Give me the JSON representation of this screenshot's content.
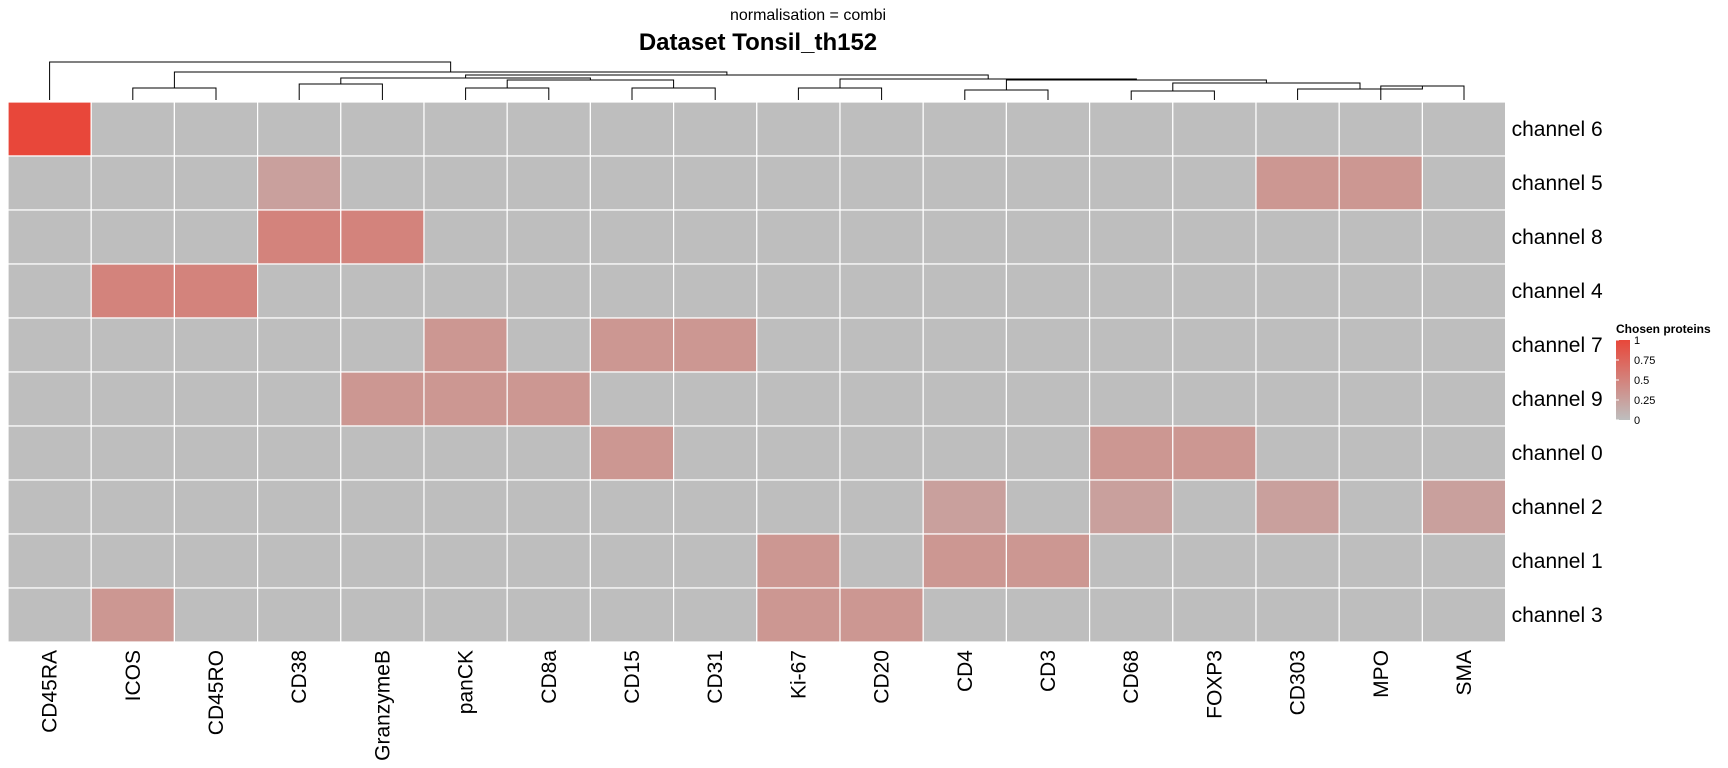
{
  "chart_data": {
    "type": "heatmap",
    "subtitle": "normalisation = combi",
    "title": "Dataset Tonsil_th152",
    "columns": [
      "CD45RA",
      "ICOS",
      "CD45RO",
      "CD38",
      "GranzymeB",
      "panCK",
      "CD8a",
      "CD15",
      "CD31",
      "Ki-67",
      "CD20",
      "CD4",
      "CD3",
      "CD68",
      "FOXP3",
      "CD303",
      "MPO",
      "SMA"
    ],
    "rows": [
      "channel 6",
      "channel 5",
      "channel 8",
      "channel 4",
      "channel 7",
      "channel 9",
      "channel 0",
      "channel 2",
      "channel 1",
      "channel 3"
    ],
    "values": [
      [
        1,
        0,
        0,
        0,
        0,
        0,
        0,
        0,
        0,
        0,
        0,
        0,
        0,
        0,
        0,
        0,
        0,
        0
      ],
      [
        0,
        0,
        0,
        0.25,
        0,
        0,
        0,
        0,
        0,
        0,
        0,
        0,
        0,
        0,
        0,
        0.33,
        0.33,
        0
      ],
      [
        0,
        0,
        0,
        0.5,
        0.5,
        0,
        0,
        0,
        0,
        0,
        0,
        0,
        0,
        0,
        0,
        0,
        0,
        0
      ],
      [
        0,
        0.5,
        0.5,
        0,
        0,
        0,
        0,
        0,
        0,
        0,
        0,
        0,
        0,
        0,
        0,
        0,
        0,
        0
      ],
      [
        0,
        0,
        0,
        0,
        0,
        0.33,
        0,
        0.33,
        0.33,
        0,
        0,
        0,
        0,
        0,
        0,
        0,
        0,
        0
      ],
      [
        0,
        0,
        0,
        0,
        0.33,
        0.33,
        0.33,
        0,
        0,
        0,
        0,
        0,
        0,
        0,
        0,
        0,
        0,
        0
      ],
      [
        0,
        0,
        0,
        0,
        0,
        0,
        0,
        0.33,
        0,
        0,
        0,
        0,
        0,
        0.33,
        0.33,
        0,
        0,
        0
      ],
      [
        0,
        0,
        0,
        0,
        0,
        0,
        0,
        0,
        0,
        0,
        0,
        0.25,
        0,
        0.25,
        0,
        0.25,
        0,
        0.25
      ],
      [
        0,
        0,
        0,
        0,
        0,
        0,
        0,
        0,
        0,
        0.33,
        0,
        0.33,
        0.33,
        0,
        0,
        0,
        0,
        0
      ],
      [
        0,
        0.33,
        0,
        0,
        0,
        0,
        0,
        0,
        0,
        0.33,
        0.33,
        0,
        0,
        0,
        0,
        0,
        0,
        0
      ]
    ],
    "color_scale": {
      "low": "#BEBEBE",
      "high": "#E8473A",
      "min": 0,
      "max": 1
    },
    "legend": {
      "title": "Chosen proteins",
      "ticks": [
        "1",
        "0.75",
        "0.5",
        "0.25",
        "0"
      ],
      "tick_values": [
        1,
        0.75,
        0.5,
        0.25,
        0
      ],
      "position": "right"
    },
    "column_dendrogram": true
  }
}
